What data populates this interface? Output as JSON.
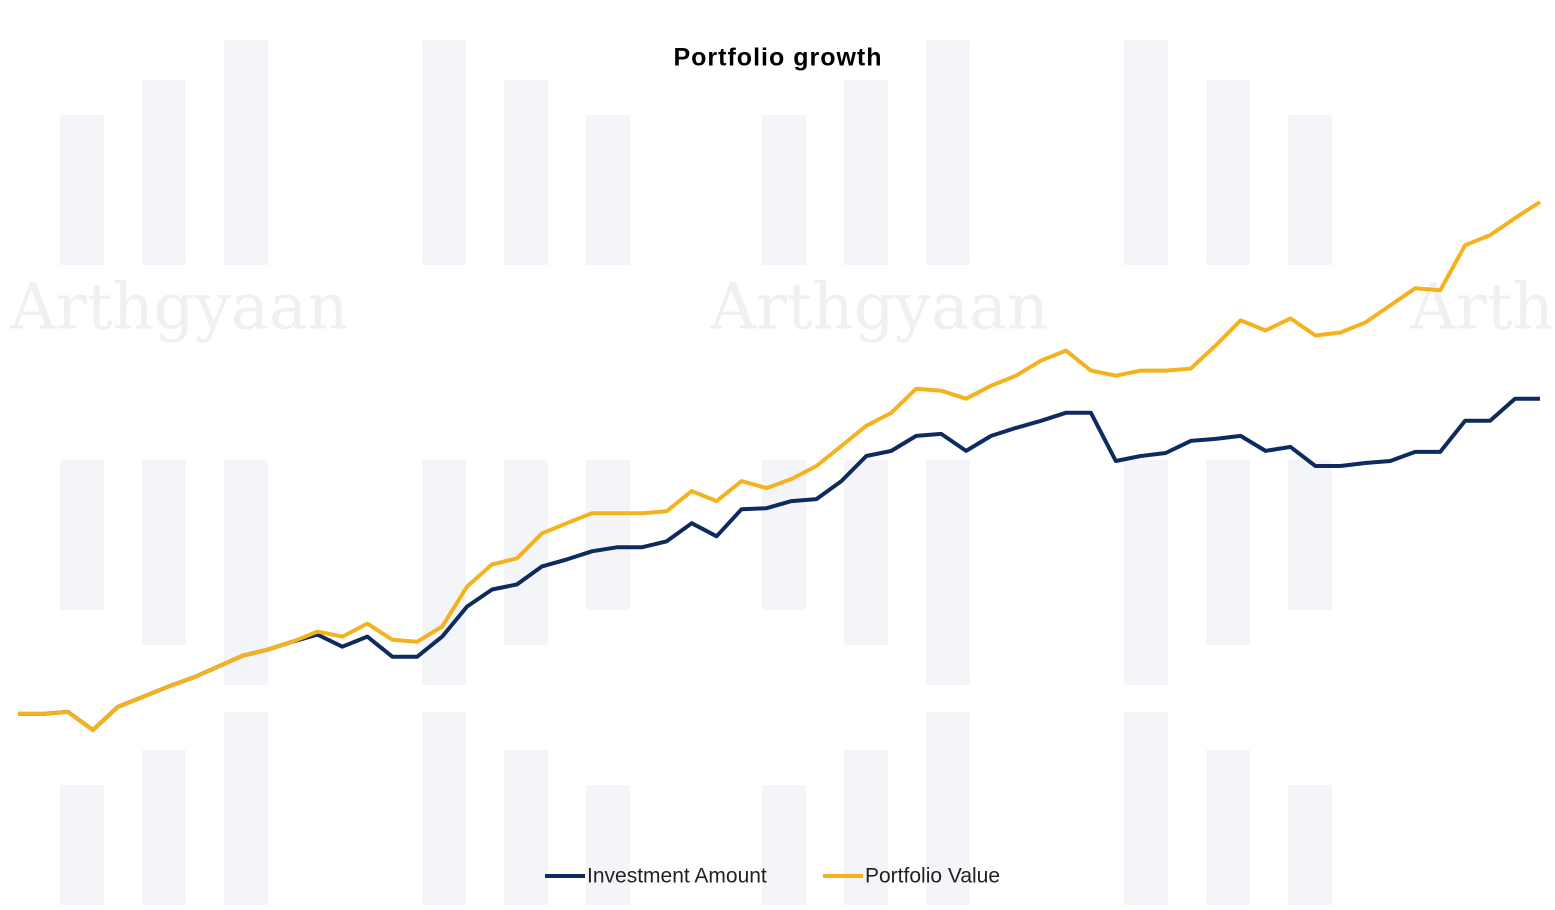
{
  "chart_data": {
    "type": "line",
    "title": "Portfolio growth",
    "watermark": "Arthgyaan",
    "series": [
      {
        "name": "Investment Amount",
        "color": "#0d2b5e",
        "values": [
          28,
          28,
          30,
          12,
          35,
          45,
          55,
          64,
          75,
          86,
          92,
          100,
          107,
          95,
          105,
          85,
          85,
          105,
          135,
          152,
          157,
          175,
          182,
          190,
          194,
          194,
          200,
          218,
          205,
          232,
          233,
          240,
          242,
          260,
          285,
          290,
          305,
          307,
          290,
          305,
          313,
          320,
          328,
          328,
          280,
          285,
          288,
          300,
          302,
          305,
          290,
          294,
          275,
          275,
          278,
          280,
          289,
          289,
          320,
          320,
          342,
          342
        ]
      },
      {
        "name": "Portfolio Value",
        "color": "#f5b21f",
        "values": [
          28,
          28,
          30,
          12,
          35,
          45,
          55,
          64,
          75,
          86,
          92,
          100,
          110,
          105,
          118,
          102,
          100,
          115,
          155,
          177,
          183,
          208,
          218,
          228,
          228,
          228,
          230,
          250,
          240,
          260,
          253,
          262,
          275,
          295,
          315,
          328,
          352,
          350,
          342,
          355,
          365,
          380,
          390,
          370,
          365,
          370,
          370,
          372,
          395,
          420,
          410,
          422,
          405,
          408,
          418,
          435,
          452,
          450,
          495,
          505,
          522,
          538
        ]
      }
    ]
  }
}
